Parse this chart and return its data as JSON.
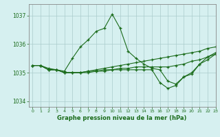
{
  "title": "Graphe pression niveau de la mer (hPa)",
  "background_color": "#d6f0f0",
  "grid_color": "#aacccc",
  "line_color": "#1a6b1a",
  "marker_color": "#1a6b1a",
  "xlim": [
    -0.5,
    23
  ],
  "ylim": [
    1033.8,
    1037.4
  ],
  "yticks": [
    1034,
    1035,
    1036,
    1037
  ],
  "xticks": [
    0,
    1,
    2,
    3,
    4,
    5,
    6,
    7,
    8,
    9,
    10,
    11,
    12,
    13,
    14,
    15,
    16,
    17,
    18,
    19,
    20,
    21,
    22,
    23
  ],
  "series": [
    [
      1035.25,
      1035.25,
      1035.15,
      1035.1,
      1035.05,
      1035.5,
      1035.9,
      1036.15,
      1036.45,
      1036.55,
      1037.05,
      1036.55,
      1035.75,
      1035.5,
      1035.3,
      1035.15,
      1035.1,
      1034.7,
      1034.6,
      1034.85,
      1034.95,
      1035.3,
      1035.55,
      1035.7
    ],
    [
      1035.25,
      1035.25,
      1035.1,
      1035.1,
      1035.0,
      1035.0,
      1035.0,
      1035.05,
      1035.1,
      1035.15,
      1035.2,
      1035.25,
      1035.3,
      1035.35,
      1035.4,
      1035.45,
      1035.5,
      1035.55,
      1035.6,
      1035.65,
      1035.7,
      1035.75,
      1035.85,
      1035.9
    ],
    [
      1035.25,
      1035.25,
      1035.1,
      1035.1,
      1035.0,
      1035.0,
      1035.0,
      1035.05,
      1035.05,
      1035.1,
      1035.1,
      1035.15,
      1035.15,
      1035.2,
      1035.2,
      1035.2,
      1035.2,
      1035.2,
      1035.25,
      1035.3,
      1035.4,
      1035.45,
      1035.55,
      1035.65
    ],
    [
      1035.25,
      1035.25,
      1035.1,
      1035.1,
      1035.0,
      1035.0,
      1035.0,
      1035.0,
      1035.05,
      1035.05,
      1035.1,
      1035.1,
      1035.1,
      1035.1,
      1035.1,
      1035.1,
      1034.65,
      1034.45,
      1034.55,
      1034.85,
      1035.0,
      1035.3,
      1035.45,
      1035.65
    ]
  ]
}
